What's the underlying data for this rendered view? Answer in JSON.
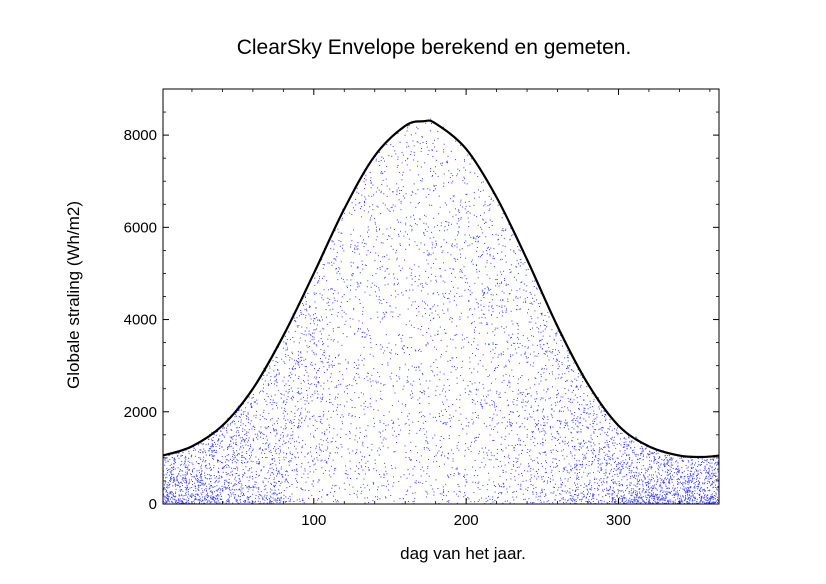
{
  "chart_data": {
    "type": "scatter",
    "title": "ClearSky Envelope berekend en gemeten.",
    "xlabel": "dag van het jaar.",
    "ylabel": "Globale straling (Wh/m2)",
    "xlim": [
      1,
      366
    ],
    "ylim": [
      0,
      9000
    ],
    "x_ticks": [
      100,
      200,
      300
    ],
    "y_ticks": [
      0,
      2000,
      4000,
      6000,
      8000
    ],
    "grid": false,
    "legend": "none",
    "series": [
      {
        "kind": "line",
        "color": "#000000",
        "x": [
          1,
          20,
          40,
          60,
          80,
          100,
          120,
          140,
          160,
          172,
          180,
          200,
          220,
          240,
          260,
          280,
          300,
          320,
          340,
          355,
          366
        ],
        "y": [
          1050,
          1250,
          1700,
          2500,
          3650,
          5000,
          6400,
          7550,
          8200,
          8300,
          8250,
          7700,
          6650,
          5300,
          3850,
          2600,
          1700,
          1250,
          1050,
          1020,
          1050
        ]
      },
      {
        "kind": "scatter",
        "color": "#3b3bff",
        "point_count": 6570,
        "distribution": "daily measurements between 0 and the clear-sky envelope, denser near the lower part in winter"
      }
    ]
  }
}
